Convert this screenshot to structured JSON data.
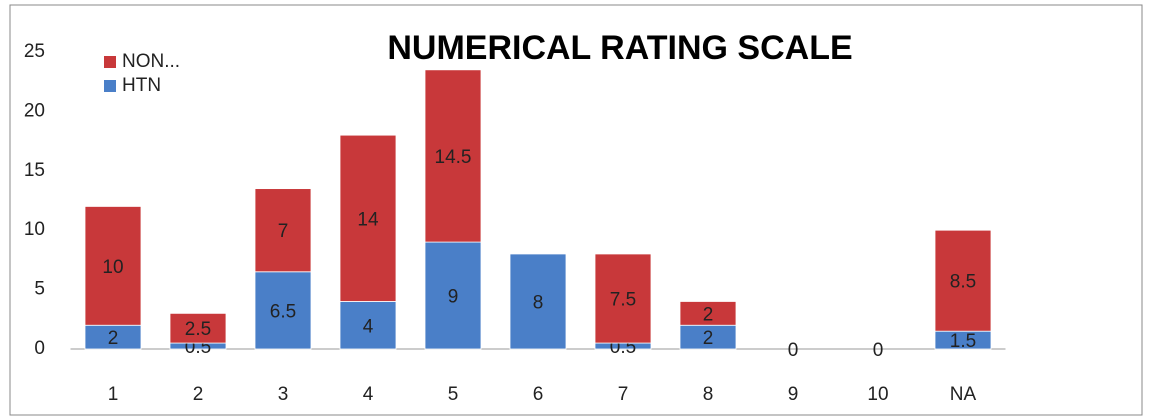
{
  "chart_data": {
    "type": "stacked_bar",
    "title": "NUMERICAL RATING SCALE",
    "categories": [
      "1",
      "2",
      "3",
      "4",
      "5",
      "6",
      "7",
      "8",
      "9",
      "10",
      "NA"
    ],
    "series": [
      {
        "name": "HTN",
        "color": "#4a7fc8",
        "values": [
          2,
          0.5,
          6.5,
          4,
          9,
          8,
          0.5,
          2,
          0,
          0,
          1.5
        ]
      },
      {
        "name": "NON...",
        "color": "#c8383a",
        "values": [
          10,
          2.5,
          7,
          14,
          14.5,
          null,
          7.5,
          2,
          null,
          null,
          8.5
        ]
      }
    ],
    "ylim": [
      0,
      25
    ],
    "yticks": [
      0,
      5,
      10,
      15,
      20,
      25
    ],
    "grid": false,
    "legend": "top-left"
  }
}
